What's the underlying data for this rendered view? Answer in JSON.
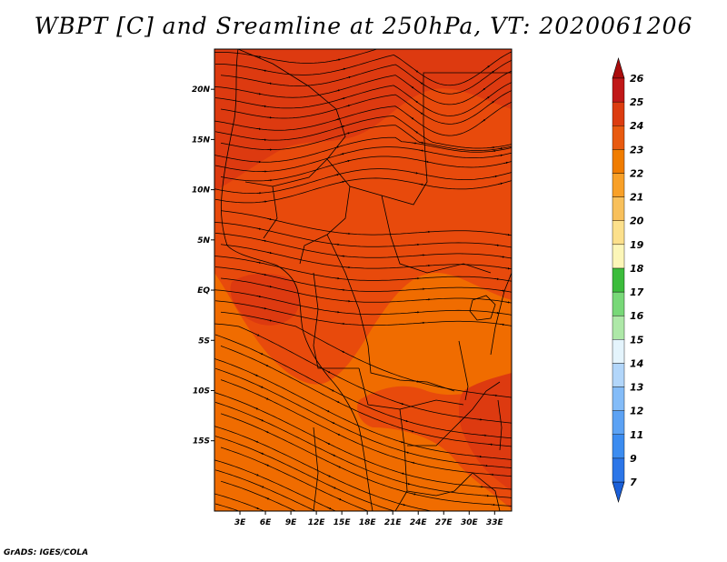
{
  "title": "WBPT [C] and Sreamline at 250hPa, VT: 2020061206",
  "footer": "GrADS: IGES/COLA",
  "map": {
    "lon_range": [
      0,
      35
    ],
    "lat_range": [
      -22,
      24
    ],
    "lon_ticks": [
      {
        "value": 3,
        "label": "3E"
      },
      {
        "value": 6,
        "label": "6E"
      },
      {
        "value": 9,
        "label": "9E"
      },
      {
        "value": 12,
        "label": "12E"
      },
      {
        "value": 15,
        "label": "15E"
      },
      {
        "value": 18,
        "label": "18E"
      },
      {
        "value": 21,
        "label": "21E"
      },
      {
        "value": 24,
        "label": "24E"
      },
      {
        "value": 27,
        "label": "27E"
      },
      {
        "value": 30,
        "label": "30E"
      },
      {
        "value": 33,
        "label": "33E"
      }
    ],
    "lat_ticks": [
      {
        "value": 20,
        "label": "20N"
      },
      {
        "value": 15,
        "label": "15N"
      },
      {
        "value": 10,
        "label": "10N"
      },
      {
        "value": 5,
        "label": "5N"
      },
      {
        "value": 0,
        "label": "EQ"
      },
      {
        "value": -5,
        "label": "5S"
      },
      {
        "value": -10,
        "label": "10S"
      },
      {
        "value": -15,
        "label": "15S"
      }
    ],
    "field_colors": {
      "c22": "#f06c00",
      "c23": "#e84a0c",
      "c24": "#dd3a10"
    },
    "line_color": "#000000"
  },
  "colorbar": {
    "labels": [
      "7",
      "9",
      "11",
      "12",
      "13",
      "14",
      "15",
      "16",
      "17",
      "18",
      "19",
      "20",
      "21",
      "22",
      "23",
      "24",
      "25",
      "26"
    ],
    "colors": [
      "#1a5fd8",
      "#2c76e8",
      "#3c8cf0",
      "#5ca2f4",
      "#84bcf8",
      "#b2d6fa",
      "#e4f4fc",
      "#aee8a8",
      "#78d878",
      "#3cbc3c",
      "#fcf6b8",
      "#fce08c",
      "#f8c05c",
      "#f8a028",
      "#f07c00",
      "#e85a10",
      "#dc3c10",
      "#c01818",
      "#aa0c0c"
    ]
  }
}
